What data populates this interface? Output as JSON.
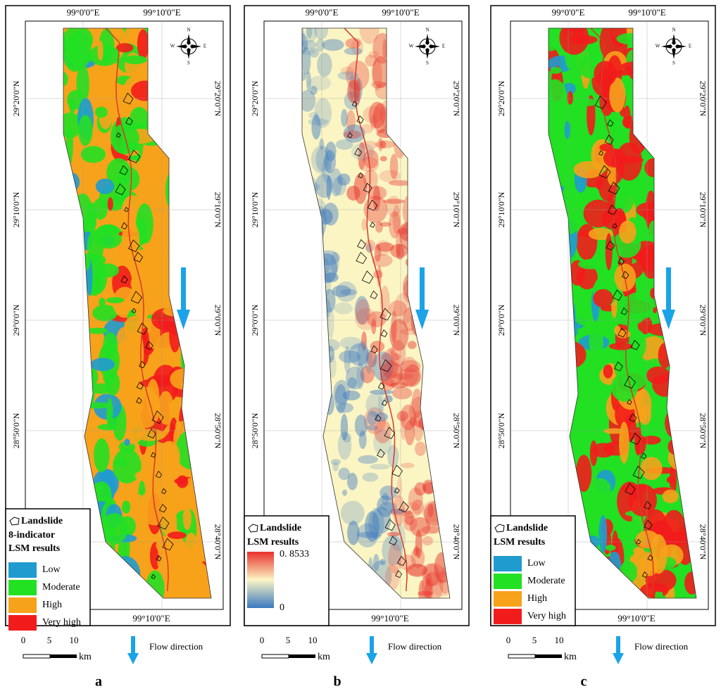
{
  "panels": [
    {
      "letter": "a",
      "top_labels": [
        "99°0'0\"E",
        "99°10'0\"E"
      ],
      "bottom_label": "99°10'0\"E",
      "lat_labels": [
        "29°20'0\"N",
        "29°10'0\"N",
        "29°0'0\"N",
        "28°50'0\"N",
        "28°40'0\"N"
      ],
      "compass": [
        "N",
        "E",
        "S",
        "W"
      ],
      "legend": {
        "landslide": "Landslide",
        "title_lines": [
          "8-indicator",
          "LSM results"
        ],
        "classes": [
          {
            "name": "Low",
            "color": "#1f9bd0"
          },
          {
            "name": "Moderate",
            "color": "#22e022"
          },
          {
            "name": "High",
            "color": "#f7a21b"
          },
          {
            "name": "Very high",
            "color": "#f21c1c"
          }
        ]
      },
      "scale": {
        "ticks": [
          "0",
          "5",
          "10"
        ],
        "unit": "km"
      },
      "flow": "Flow direction"
    },
    {
      "letter": "b",
      "top_labels": [
        "99°0'0\"E",
        "99°10'0\"E"
      ],
      "bottom_label": "99°10'0\"E",
      "lat_labels": [
        "29°20'0\"N",
        "29°10'0\"N",
        "29°0'0\"N",
        "28°50'0\"N",
        "28°40'0\"N"
      ],
      "compass": [
        "N",
        "E",
        "S",
        "W"
      ],
      "legend": {
        "landslide": "Landslide",
        "title_lines": [
          "LSM results"
        ],
        "gradient": {
          "max": "0. 8533",
          "min": "0",
          "colors": [
            "#e8312b",
            "#fbf5c4",
            "#3a78c0"
          ]
        }
      },
      "scale": {
        "ticks": [
          "0",
          "5",
          "10"
        ],
        "unit": "km"
      },
      "flow": "Flow direction"
    },
    {
      "letter": "c",
      "top_labels": [
        "99°0'0\"E",
        "99°10'0\"E"
      ],
      "bottom_label": "99°10'0\"E",
      "lat_labels": [
        "29°20'0\"N",
        "29°10'0\"N",
        "29°0'0\"N",
        "28°50'0\"N",
        "28°40'0\"N"
      ],
      "compass": [
        "N",
        "E",
        "S",
        "W"
      ],
      "legend": {
        "landslide": "Landslide",
        "title_lines": [
          "LSM results"
        ],
        "classes": [
          {
            "name": "Low",
            "color": "#1f9bd0"
          },
          {
            "name": "Moderate",
            "color": "#22e022"
          },
          {
            "name": "High",
            "color": "#f7a21b"
          },
          {
            "name": "Very high",
            "color": "#f21c1c"
          }
        ]
      },
      "scale": {
        "ticks": [
          "0",
          "5",
          "10"
        ],
        "unit": "km"
      },
      "flow": "Flow direction"
    }
  ]
}
